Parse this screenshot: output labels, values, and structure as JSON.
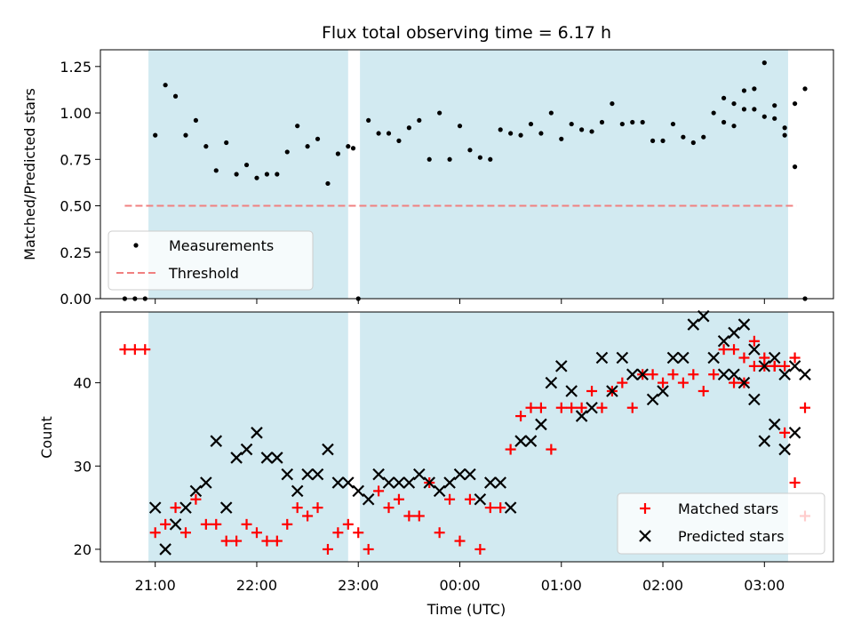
{
  "chart_data": [
    {
      "type": "scatter",
      "title": "Flux total observing time = 6.17 h",
      "xlabel": "",
      "ylabel": "Matched/Predicted stars",
      "ylim": [
        0,
        1.34
      ],
      "yticks": [
        "0.00",
        "0.25",
        "0.50",
        "0.75",
        "1.00",
        "1.25"
      ],
      "xlim_hours": [
        20.46,
        27.68
      ],
      "grid": false,
      "legend_position": "lower-left",
      "shaded_intervals": [
        [
          "20:56",
          "22:54"
        ],
        [
          "23:01",
          "03:14"
        ]
      ],
      "series": [
        {
          "name": "Measurements",
          "marker": "dot",
          "color": "#000000",
          "x": [
            "20:42",
            "20:48",
            "20:54",
            "21:00",
            "21:06",
            "21:12",
            "21:18",
            "21:24",
            "21:30",
            "21:36",
            "21:42",
            "21:48",
            "21:54",
            "22:00",
            "22:06",
            "22:12",
            "22:18",
            "22:24",
            "22:30",
            "22:36",
            "22:42",
            "22:48",
            "22:54",
            "22:57",
            "23:00",
            "23:06",
            "23:12",
            "23:18",
            "23:24",
            "23:30",
            "23:36",
            "23:42",
            "23:48",
            "23:54",
            "24:00",
            "24:06",
            "24:12",
            "24:18",
            "24:24",
            "24:30",
            "24:36",
            "24:42",
            "24:48",
            "24:54",
            "25:00",
            "25:06",
            "25:12",
            "25:18",
            "25:24",
            "25:30",
            "25:36",
            "25:42",
            "25:48",
            "25:54",
            "26:00",
            "26:06",
            "26:12",
            "26:18",
            "26:24",
            "26:30",
            "26:36",
            "26:42",
            "26:48",
            "26:54",
            "27:00",
            "27:06",
            "27:12",
            "27:18",
            "27:24"
          ],
          "y": [
            0.0,
            0.0,
            0.0,
            0.88,
            1.15,
            1.09,
            0.88,
            0.96,
            0.82,
            0.69,
            0.84,
            0.67,
            0.72,
            0.65,
            0.67,
            0.67,
            0.79,
            0.93,
            0.82,
            0.86,
            0.62,
            0.78,
            0.82,
            0.81,
            0.0,
            0.96,
            0.89,
            0.89,
            0.85,
            0.92,
            0.96,
            0.75,
            1.0,
            0.75,
            0.93,
            0.8,
            0.76,
            0.75,
            0.91,
            0.89,
            0.88,
            0.94,
            0.89,
            1.0,
            0.86,
            0.94,
            0.91,
            0.9,
            0.95,
            1.05,
            0.94,
            0.95,
            0.95,
            0.85,
            0.85,
            0.94,
            0.87,
            0.84,
            0.87,
            1.0,
            0.95,
            0.93,
            1.02,
            1.02,
            0.98,
            1.04,
            0.92,
            1.05,
            1.13
          ]
        },
        {
          "name": "Threshold",
          "marker": "dashed-line",
          "color": "#f08080",
          "x": [
            "20:42",
            "27:19"
          ],
          "y": [
            0.5,
            0.5
          ]
        }
      ]
    },
    {
      "type": "scatter",
      "title": "",
      "xlabel": "Time (UTC)",
      "ylabel": "Count",
      "ylim": [
        18.5,
        48.5
      ],
      "yticks": [
        "20",
        "30",
        "40"
      ],
      "xticks": [
        "21:00",
        "22:00",
        "23:00",
        "00:00",
        "01:00",
        "02:00",
        "03:00"
      ],
      "xlim_hours": [
        20.46,
        27.68
      ],
      "grid": false,
      "legend_position": "lower-right",
      "shaded_intervals": [
        [
          "20:56",
          "22:54"
        ],
        [
          "23:01",
          "03:14"
        ]
      ],
      "series": [
        {
          "name": "Matched stars",
          "marker": "plus",
          "color": "#ff0000",
          "x": [
            "20:42",
            "20:48",
            "20:54",
            "21:00",
            "21:06",
            "21:12",
            "21:18",
            "21:24",
            "21:30",
            "21:36",
            "21:42",
            "21:48",
            "21:54",
            "22:00",
            "22:06",
            "22:12",
            "22:18",
            "22:24",
            "22:30",
            "22:36",
            "22:42",
            "22:48",
            "22:54",
            "23:00",
            "23:06",
            "23:12",
            "23:18",
            "23:24",
            "23:30",
            "23:36",
            "23:42",
            "23:48",
            "23:54",
            "24:00",
            "24:06",
            "24:12",
            "24:18",
            "24:24",
            "24:30",
            "24:36",
            "24:42",
            "24:48",
            "24:54",
            "25:00",
            "25:06",
            "25:12",
            "25:18",
            "25:24",
            "25:30",
            "25:36",
            "25:42",
            "25:48",
            "25:54",
            "26:00",
            "26:06",
            "26:12",
            "26:18",
            "26:24",
            "26:30",
            "26:36",
            "26:42",
            "26:48",
            "26:54",
            "27:00",
            "27:06",
            "27:12",
            "27:18",
            "27:24"
          ],
          "y": [
            44,
            44,
            44,
            22,
            23,
            25,
            22,
            26,
            23,
            23,
            21,
            21,
            23,
            22,
            21,
            21,
            23,
            25,
            24,
            25,
            20,
            22,
            23,
            22,
            20,
            27,
            25,
            26,
            24,
            24,
            28,
            22,
            26,
            21,
            26,
            20,
            25,
            25,
            32,
            36,
            37,
            37,
            32,
            37,
            37,
            37,
            39,
            37,
            39,
            40,
            37,
            41,
            41,
            40,
            41,
            40,
            41,
            39,
            41,
            44,
            40,
            40,
            42,
            42,
            42,
            42,
            43,
            37
          ]
        },
        {
          "name": "Predicted stars",
          "marker": "x",
          "color": "#000000",
          "x": [
            "21:00",
            "21:06",
            "21:12",
            "21:18",
            "21:24",
            "21:30",
            "21:36",
            "21:42",
            "21:48",
            "21:54",
            "22:00",
            "22:06",
            "22:12",
            "22:18",
            "22:24",
            "22:30",
            "22:36",
            "22:42",
            "22:48",
            "22:54",
            "23:00",
            "23:06",
            "23:12",
            "23:18",
            "23:24",
            "23:30",
            "23:36",
            "23:42",
            "23:48",
            "23:54",
            "24:00",
            "24:06",
            "24:12",
            "24:18",
            "24:24",
            "24:30",
            "24:36",
            "24:42",
            "24:48",
            "24:54",
            "25:00",
            "25:06",
            "25:12",
            "25:18",
            "25:24",
            "25:30",
            "25:36",
            "25:42",
            "25:48",
            "25:54",
            "26:00",
            "26:06",
            "26:12",
            "26:18",
            "26:24",
            "26:30",
            "26:36",
            "26:42",
            "26:48",
            "26:54",
            "27:00",
            "27:06",
            "27:12",
            "27:18",
            "27:24"
          ],
          "y": [
            25,
            20,
            23,
            25,
            27,
            28,
            33,
            25,
            31,
            32,
            34,
            31,
            31,
            29,
            27,
            29,
            29,
            32,
            28,
            28,
            27,
            26,
            29,
            28,
            28,
            28,
            29,
            28,
            27,
            28,
            29,
            29,
            26,
            28,
            28,
            25,
            33,
            33,
            35,
            40,
            42,
            39,
            36,
            37,
            43,
            39,
            43,
            41,
            41,
            38,
            39,
            43,
            43,
            47,
            48,
            43,
            45,
            46,
            47,
            44,
            42,
            43,
            41,
            42,
            41
          ]
        }
      ]
    }
  ],
  "extra_points": {
    "top_tail_x": [
      "26:36",
      "26:42",
      "26:48",
      "26:54",
      "27:00",
      "27:06",
      "27:12",
      "27:18",
      "27:24"
    ],
    "top_tail_y": [
      1.08,
      1.05,
      1.12,
      1.13,
      1.27,
      0.97,
      0.88,
      0.71,
      0.0
    ],
    "pred_tail_x": [
      "26:36",
      "26:42",
      "26:48",
      "26:54",
      "27:00",
      "27:06",
      "27:12",
      "27:18"
    ],
    "pred_tail_y": [
      41,
      41,
      40,
      38,
      33,
      35,
      32,
      34
    ],
    "matched_tail_x": [
      "26:42",
      "26:48",
      "26:54",
      "27:00",
      "27:06",
      "27:12",
      "27:18",
      "27:24"
    ],
    "matched_tail_y": [
      44,
      43,
      45,
      43,
      42,
      34,
      28,
      24
    ]
  }
}
